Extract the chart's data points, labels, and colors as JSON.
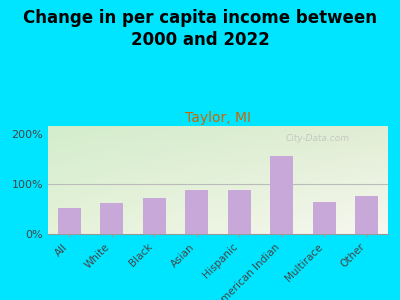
{
  "title": "Change in per capita income between\n2000 and 2022",
  "subtitle": "Taylor, MI",
  "categories": [
    "All",
    "White",
    "Black",
    "Asian",
    "Hispanic",
    "American Indian",
    "Multirace",
    "Other"
  ],
  "values": [
    52,
    62,
    72,
    88,
    88,
    155,
    63,
    75
  ],
  "bar_color": "#c8a8d8",
  "title_fontsize": 12,
  "subtitle_fontsize": 10,
  "subtitle_color": "#cc6600",
  "title_color": "#000000",
  "background_outer": "#00e5ff",
  "yticks": [
    0,
    100,
    200
  ],
  "ylabels": [
    "0%",
    "100%",
    "200%"
  ],
  "ylim": [
    0,
    215
  ],
  "watermark": "City-Data.com",
  "tick_label_fontsize": 8,
  "xlabel_fontsize": 7.5
}
